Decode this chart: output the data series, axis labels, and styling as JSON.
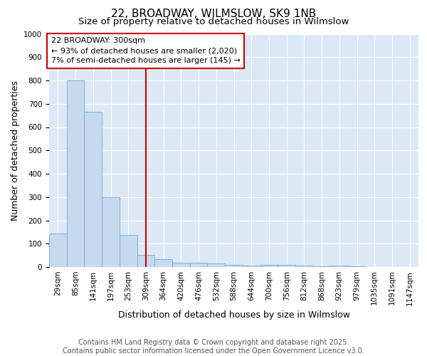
{
  "title1": "22, BROADWAY, WILMSLOW, SK9 1NB",
  "title2": "Size of property relative to detached houses in Wilmslow",
  "xlabel": "Distribution of detached houses by size in Wilmslow",
  "ylabel": "Number of detached properties",
  "categories": [
    "29sqm",
    "85sqm",
    "141sqm",
    "197sqm",
    "253sqm",
    "309sqm",
    "364sqm",
    "420sqm",
    "476sqm",
    "532sqm",
    "588sqm",
    "644sqm",
    "700sqm",
    "756sqm",
    "812sqm",
    "868sqm",
    "923sqm",
    "979sqm",
    "1035sqm",
    "1091sqm",
    "1147sqm"
  ],
  "values": [
    145,
    800,
    665,
    300,
    138,
    53,
    33,
    18,
    18,
    15,
    8,
    5,
    10,
    8,
    5,
    3,
    5,
    2,
    1,
    1,
    1
  ],
  "bar_color": "#c6d9ee",
  "bar_edge_color": "#7aafd4",
  "vline_x_index": 5,
  "vline_color": "#cc0000",
  "annotation_line1": "22 BROADWAY: 300sqm",
  "annotation_line2": "← 93% of detached houses are smaller (2,020)",
  "annotation_line3": "7% of semi-detached houses are larger (145) →",
  "ylim": [
    0,
    1000
  ],
  "yticks": [
    0,
    100,
    200,
    300,
    400,
    500,
    600,
    700,
    800,
    900,
    1000
  ],
  "fig_bg_color": "#ffffff",
  "plot_bg_color": "#dce9f5",
  "grid_color": "#ffffff",
  "footer_line1": "Contains HM Land Registry data © Crown copyright and database right 2025.",
  "footer_line2": "Contains public sector information licensed under the Open Government Licence v3.0.",
  "title_fontsize": 11,
  "subtitle_fontsize": 9.5,
  "axis_label_fontsize": 9,
  "tick_fontsize": 7.5,
  "footer_fontsize": 7,
  "annot_fontsize": 8
}
